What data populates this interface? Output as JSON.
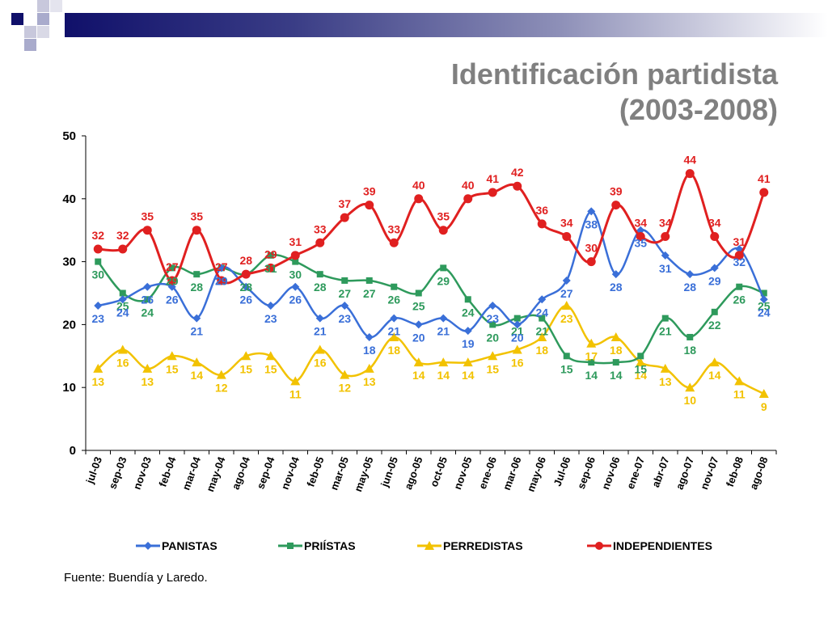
{
  "title": {
    "line1": "Identificación partidista",
    "line2": "(2003-2008)"
  },
  "source": "Fuente: Buendía y Laredo.",
  "chart_data": {
    "type": "line",
    "title": "Identificación partidista (2003-2008)",
    "xlabel": "",
    "ylabel": "",
    "ylim": [
      0,
      50
    ],
    "yticks": [
      0,
      10,
      20,
      30,
      40,
      50
    ],
    "grid": false,
    "legend": "bottom",
    "categories": [
      "jul-03",
      "sep-03",
      "nov-03",
      "feb-04",
      "mar-04",
      "may-04",
      "ago-04",
      "sep-04",
      "nov-04",
      "feb-05",
      "mar-05",
      "may-05",
      "jun-05",
      "ago-05",
      "oct-05",
      "nov-05",
      "ene-06",
      "mar-06",
      "may-06",
      "Jul-06",
      "sep-06",
      "nov-06",
      "ene-07",
      "abr-07",
      "ago-07",
      "nov-07",
      "feb-08",
      "ago-08"
    ],
    "series": [
      {
        "name": "PANISTAS",
        "color": "#3a6fd8",
        "marker": "diamond",
        "values": [
          23,
          24,
          26,
          26,
          21,
          29,
          26,
          23,
          26,
          21,
          23,
          18,
          21,
          20,
          21,
          19,
          23,
          20,
          24,
          27,
          38,
          28,
          35,
          31,
          28,
          29,
          32,
          24
        ]
      },
      {
        "name": "PRIÍSTAS",
        "color": "#2e9a5c",
        "marker": "square",
        "values": [
          30,
          25,
          24,
          29,
          28,
          29,
          28,
          31,
          30,
          28,
          27,
          27,
          26,
          25,
          29,
          24,
          20,
          21,
          21,
          15,
          14,
          14,
          15,
          21,
          18,
          22,
          26,
          25
        ]
      },
      {
        "name": "PERREDISTAS",
        "color": "#f2c200",
        "marker": "triangle",
        "values": [
          13,
          16,
          13,
          15,
          14,
          12,
          15,
          15,
          11,
          16,
          12,
          13,
          18,
          14,
          14,
          14,
          15,
          16,
          18,
          23,
          17,
          18,
          14,
          13,
          10,
          14,
          11,
          9
        ]
      },
      {
        "name": "INDEPENDIENTES",
        "color": "#e02020",
        "marker": "circle",
        "values": [
          32,
          32,
          35,
          27,
          35,
          27,
          28,
          29,
          31,
          33,
          37,
          39,
          33,
          40,
          35,
          40,
          41,
          42,
          36,
          34,
          30,
          39,
          34,
          34,
          44,
          34,
          31,
          41
        ]
      }
    ]
  }
}
